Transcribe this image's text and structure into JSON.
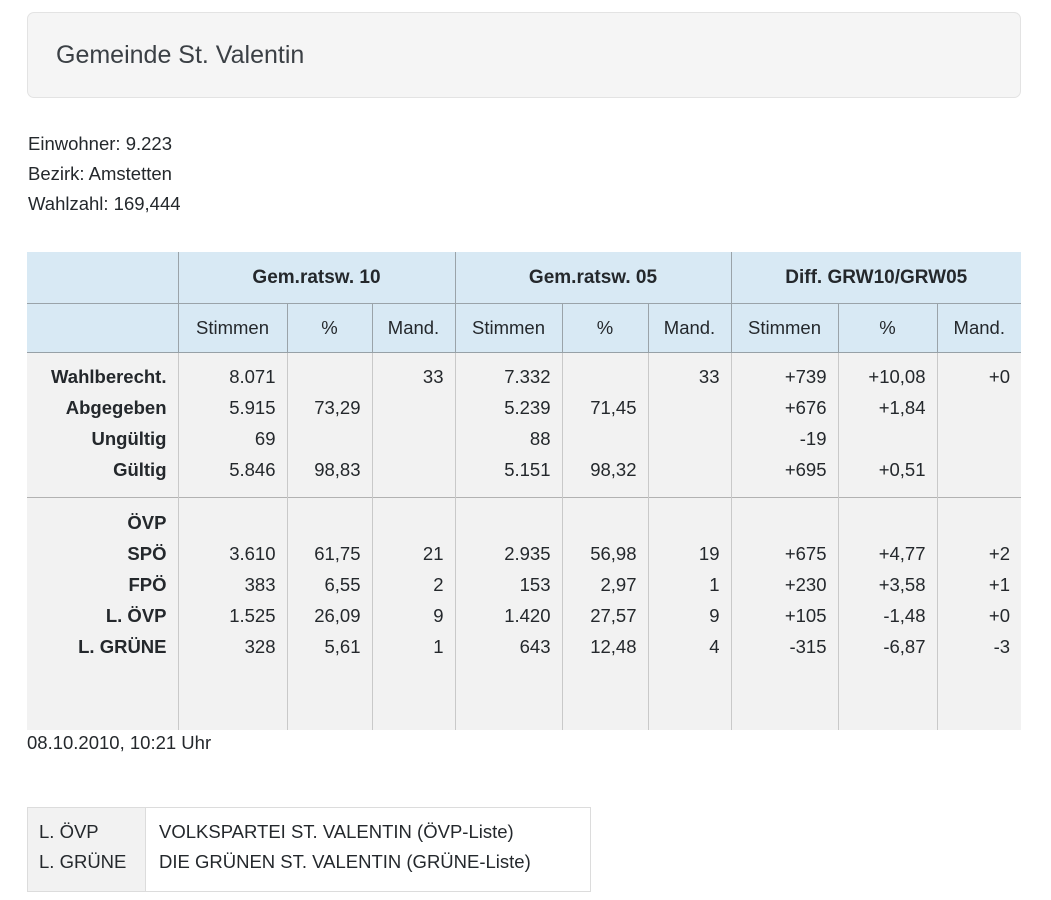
{
  "header": {
    "title": "Gemeinde St. Valentin"
  },
  "info": {
    "lines": [
      "Einwohner: 9.223",
      "Bezirk: Amstetten",
      "Wahlzahl: 169,444"
    ]
  },
  "results_table": {
    "group_headers": [
      "Gem.ratsw. 10",
      "Gem.ratsw. 05",
      "Diff. GRW10/GRW05"
    ],
    "column_headers": [
      "Stimmen",
      "%",
      "Mand."
    ],
    "sections": [
      {
        "name": "turnout",
        "rows": [
          {
            "label": "Wahlberecht.",
            "values": [
              "8.071",
              "",
              "33",
              "7.332",
              "",
              "33",
              "+739",
              "+10,08",
              "+0"
            ]
          },
          {
            "label": "Abgegeben",
            "values": [
              "5.915",
              "73,29",
              "",
              "5.239",
              "71,45",
              "",
              "+676",
              "+1,84",
              ""
            ]
          },
          {
            "label": "Ungültig",
            "values": [
              "69",
              "",
              "",
              "88",
              "",
              "",
              "-19",
              "",
              ""
            ]
          },
          {
            "label": "Gültig",
            "values": [
              "5.846",
              "98,83",
              "",
              "5.151",
              "98,32",
              "",
              "+695",
              "+0,51",
              ""
            ]
          }
        ]
      },
      {
        "name": "parties",
        "rows": [
          {
            "label": "ÖVP",
            "values": [
              "",
              "",
              "",
              "",
              "",
              "",
              "",
              "",
              ""
            ]
          },
          {
            "label": "SPÖ",
            "values": [
              "3.610",
              "61,75",
              "21",
              "2.935",
              "56,98",
              "19",
              "+675",
              "+4,77",
              "+2"
            ]
          },
          {
            "label": "FPÖ",
            "values": [
              "383",
              "6,55",
              "2",
              "153",
              "2,97",
              "1",
              "+230",
              "+3,58",
              "+1"
            ]
          },
          {
            "label": "L. ÖVP",
            "values": [
              "1.525",
              "26,09",
              "9",
              "1.420",
              "27,57",
              "9",
              "+105",
              "-1,48",
              "+0"
            ]
          },
          {
            "label": "L. GRÜNE",
            "values": [
              "328",
              "5,61",
              "1",
              "643",
              "12,48",
              "4",
              "-315",
              "-6,87",
              "-3"
            ]
          }
        ]
      }
    ]
  },
  "timestamp": "08.10.2010, 10:21 Uhr",
  "legend": {
    "rows": [
      {
        "abbr": "L. ÖVP",
        "name": "VOLKSPARTEI ST. VALENTIN (ÖVP-Liste)"
      },
      {
        "abbr": "L. GRÜNE",
        "name": "DIE GRÜNEN ST. VALENTIN (GRÜNE-Liste)"
      }
    ]
  },
  "colors": {
    "table_header_fill": "#d8e9f4",
    "table_body_fill": "#f2f2f2",
    "panel_fill": "#f5f5f5",
    "text": "#24282c"
  }
}
